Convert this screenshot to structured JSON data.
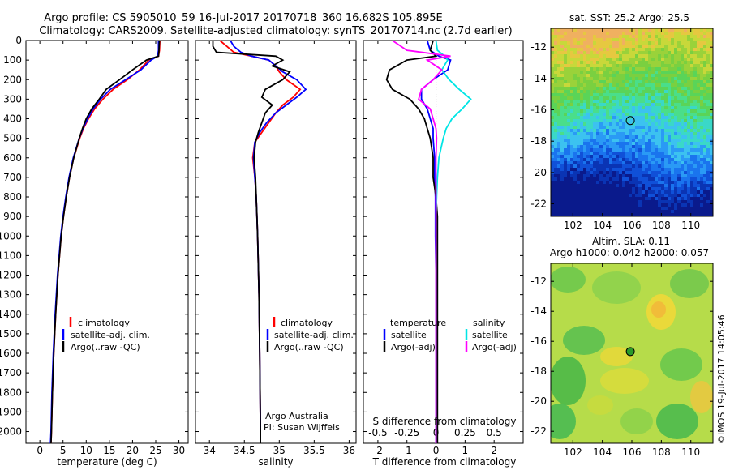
{
  "header": {
    "title_line1": "Argo profile: CS 5905010_59 16-Jul-2017 20170718_360 16.682S 105.895E",
    "title_line2": "Climatology: CARS2009. Satellite-adjusted climatology: synTS_20170714.nc (2.7d earlier)"
  },
  "depth_ticks": [
    "0",
    "100",
    "200",
    "300",
    "400",
    "500",
    "600",
    "700",
    "800",
    "900",
    "1000",
    "1100",
    "1200",
    "1300",
    "1400",
    "1500",
    "1600",
    "1700",
    "1800",
    "1900",
    "2000"
  ],
  "colors": {
    "climatology": "#ff0000",
    "satellite": "#0000ff",
    "argo": "#000000",
    "sal_sat": "#00e5e5",
    "sal_argo": "#ff00ff"
  },
  "temperature_panel": {
    "xlabel": "temperature (deg C)",
    "xticks": [
      "0",
      "5",
      "10",
      "15",
      "20",
      "25",
      "30"
    ],
    "xlim": [
      -3,
      32
    ],
    "legend": [
      "climatology",
      "satellite-adj. clim.",
      "Argo(..raw -QC)"
    ],
    "chart_data": {
      "type": "line",
      "y_depth": [
        0,
        50,
        80,
        100,
        150,
        200,
        250,
        300,
        350,
        400,
        450,
        500,
        600,
        700,
        800,
        900,
        1000,
        1200,
        1400,
        1600,
        1800,
        2000,
        2060
      ],
      "series": [
        {
          "name": "climatology",
          "values": [
            25.9,
            25.8,
            25.6,
            23.5,
            21.5,
            18.9,
            15.8,
            13.6,
            11.8,
            10.5,
            9.4,
            8.6,
            7.3,
            6.4,
            5.7,
            5.1,
            4.6,
            3.9,
            3.4,
            3.0,
            2.7,
            2.5,
            2.4
          ]
        },
        {
          "name": "satellite-adj. clim.",
          "values": [
            25.6,
            25.6,
            25.4,
            24.0,
            21.8,
            18.5,
            15.2,
            13.1,
            11.5,
            10.3,
            9.3,
            8.5,
            7.2,
            6.3,
            5.6,
            5.0,
            4.5,
            3.8,
            3.3,
            2.9,
            2.6,
            2.4,
            2.3
          ]
        },
        {
          "name": "Argo(..raw -QC)",
          "values": [
            25.8,
            25.7,
            25.6,
            23.0,
            20.0,
            17.2,
            14.3,
            12.8,
            11.2,
            10.0,
            9.2,
            8.5,
            7.3,
            6.4,
            5.7,
            5.1,
            4.6,
            3.9,
            3.4,
            3.0,
            2.7,
            2.5,
            2.4
          ]
        }
      ]
    }
  },
  "salinity_panel": {
    "xlabel": "salinity",
    "xticks": [
      "34",
      "34.5",
      "35",
      "35.5",
      "36"
    ],
    "xlim": [
      33.8,
      36.1
    ],
    "legend": [
      "climatology",
      "satellite-adj. clim.",
      "Argo(..raw -QC)"
    ],
    "credit_line1": "Argo Australia",
    "credit_line2": "PI: Susan Wijffels",
    "chart_data": {
      "type": "line",
      "y_depth": [
        0,
        30,
        60,
        80,
        100,
        130,
        160,
        200,
        250,
        290,
        330,
        370,
        420,
        470,
        520,
        600,
        700,
        800,
        900,
        1000,
        1300,
        1600,
        2000,
        2060
      ],
      "series": [
        {
          "name": "climatology",
          "values": [
            34.15,
            34.25,
            34.35,
            34.6,
            34.85,
            34.95,
            35.0,
            35.1,
            35.3,
            35.2,
            35.05,
            34.95,
            34.85,
            34.75,
            34.65,
            34.62,
            34.65,
            34.67,
            34.68,
            34.69,
            34.71,
            34.72,
            34.73,
            34.73
          ]
        },
        {
          "name": "satellite-adj. clim.",
          "values": [
            34.3,
            34.35,
            34.45,
            34.6,
            34.85,
            34.95,
            35.05,
            35.25,
            35.38,
            35.25,
            35.1,
            34.95,
            34.82,
            34.72,
            34.65,
            34.63,
            34.65,
            34.67,
            34.68,
            34.69,
            34.71,
            34.72,
            34.73,
            34.73
          ]
        },
        {
          "name": "Argo(..raw -QC)",
          "values": [
            34.05,
            34.05,
            34.1,
            34.95,
            35.05,
            34.9,
            35.15,
            35.05,
            34.8,
            34.75,
            34.9,
            34.8,
            34.75,
            34.7,
            34.66,
            34.64,
            34.66,
            34.67,
            34.68,
            34.69,
            34.71,
            34.72,
            34.73,
            34.73
          ]
        }
      ]
    }
  },
  "difference_panel": {
    "xlabel_top": "S difference from climatology",
    "xlabel_bottom": "T difference from climatology",
    "s_ticks": [
      "-0.5",
      "-0.25",
      "0",
      "0.25",
      "0.5"
    ],
    "t_ticks": [
      "-2",
      "-1",
      "0",
      "1",
      "2"
    ],
    "xlim": [
      -2.5,
      3.0
    ],
    "legend_temp_title": "temperature",
    "legend_sal_title": "salinity",
    "legend_temp": [
      "satellite",
      "Argo(-adj)"
    ],
    "legend_sal": [
      "satellite",
      "Argo(-adj)"
    ],
    "chart_data": {
      "type": "line",
      "y_depth": [
        0,
        50,
        80,
        100,
        150,
        200,
        250,
        300,
        350,
        400,
        450,
        500,
        600,
        700,
        800,
        900,
        1000,
        1200,
        1500,
        1800,
        2000,
        2060
      ],
      "series": [
        {
          "name": "T satellite",
          "values": [
            -0.3,
            -0.2,
            0.1,
            0.5,
            0.4,
            -0.1,
            -0.5,
            -0.5,
            -0.3,
            -0.2,
            -0.1,
            -0.1,
            -0.05,
            -0.05,
            -0.02,
            -0.02,
            -0.02,
            0.0,
            0.0,
            0.0,
            0.0,
            0.0
          ]
        },
        {
          "name": "T Argo(-adj)",
          "values": [
            -0.1,
            -0.2,
            0.0,
            -1.0,
            -1.6,
            -1.7,
            -1.5,
            -0.9,
            -0.6,
            -0.4,
            -0.3,
            -0.2,
            -0.1,
            -0.1,
            0.0,
            0.05,
            0.05,
            0.05,
            0.05,
            0.05,
            0.05,
            0.05
          ]
        },
        {
          "name": "S satellite",
          "values": [
            0.0,
            0.05,
            0.3,
            0.4,
            0.2,
            0.45,
            0.8,
            1.2,
            0.9,
            0.55,
            0.35,
            0.25,
            0.1,
            0.05,
            0.02,
            0.0,
            0.0,
            0.0,
            0.0,
            0.0,
            0.0,
            0.0
          ]
        },
        {
          "name": "S Argo(-adj)",
          "values": [
            -1.5,
            -1.0,
            0.5,
            -0.3,
            0.2,
            -0.1,
            -0.5,
            -0.6,
            -0.2,
            -0.1,
            0.0,
            0.02,
            0.0,
            0.0,
            0.0,
            0.0,
            0.0,
            0.0,
            0.0,
            0.0,
            0.0,
            0.0
          ]
        }
      ]
    }
  },
  "sst_map": {
    "title": "sat. SST: 25.2 Argo: 25.5",
    "xticks": [
      "102",
      "104",
      "106",
      "108",
      "110"
    ],
    "yticks": [
      "-12",
      "-14",
      "-16",
      "-18",
      "-20",
      "-22"
    ],
    "marker_lon": 105.895,
    "marker_lat": -16.682
  },
  "sla_map": {
    "title_line1": "Altim. SLA: 0.11",
    "title_line2": "Argo h1000: 0.042 h2000: 0.057",
    "xticks": [
      "102",
      "104",
      "106",
      "108",
      "110"
    ],
    "yticks": [
      "-12",
      "-14",
      "-16",
      "-18",
      "-20",
      "-22"
    ],
    "marker_lon": 105.895,
    "marker_lat": -16.682
  },
  "footer": {
    "stamp": "©IMOS 19-Jul-2017 14:05:46"
  }
}
